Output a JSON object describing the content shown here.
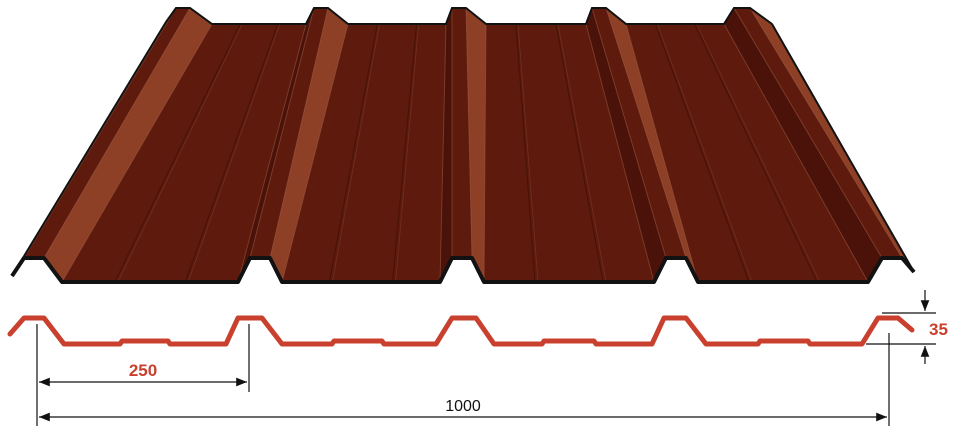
{
  "diagram": {
    "colors": {
      "sheet_dark": "#4a1208",
      "sheet_mid": "#5e1a0c",
      "sheet_light": "#7a2e1a",
      "sheet_highlight": "#8e4026",
      "outline": "#121212",
      "profile_red": "#c9412e",
      "dimension_red": "#c9412e",
      "dimension_line": "#111111",
      "background": "#ffffff"
    },
    "dimensions": {
      "rib_spacing_label": "250",
      "total_width_label": "1000",
      "rib_height_label": "35"
    }
  }
}
